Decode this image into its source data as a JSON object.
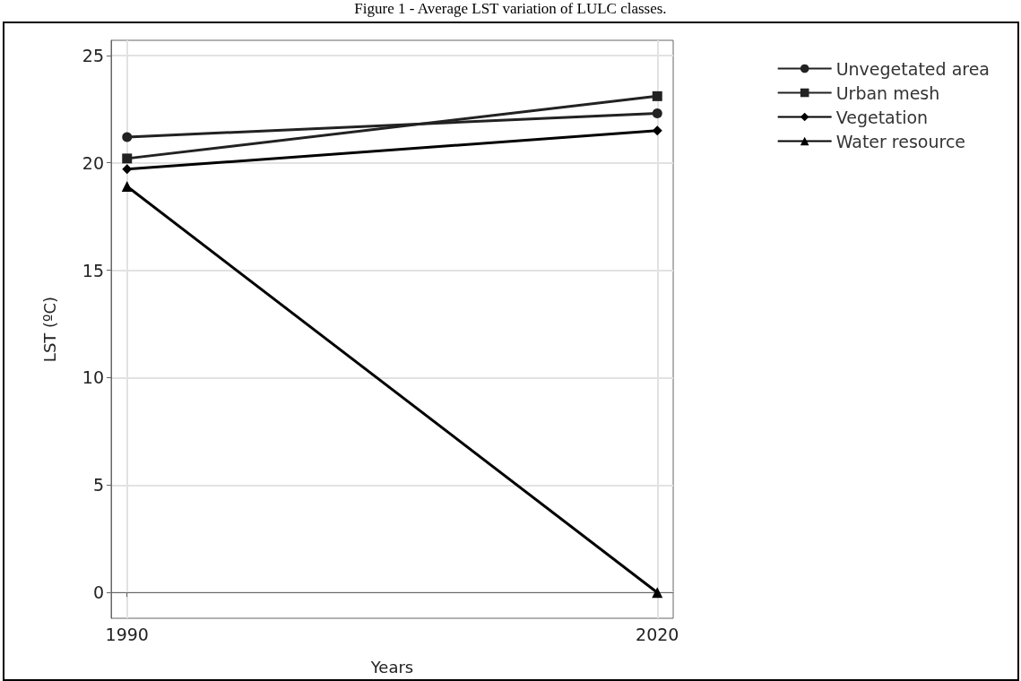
{
  "chart_data": {
    "type": "line",
    "title": "Figure 1 - Average LST variation of LULC classes.",
    "xlabel": "Years",
    "ylabel": "LST (ºC)",
    "x": [
      1990,
      2020
    ],
    "xlim": [
      1989.1,
      2020.9
    ],
    "xticks": [
      1990,
      2020
    ],
    "ylim": [
      -1.2,
      25.7
    ],
    "yticks": [
      0,
      5,
      10,
      15,
      20,
      25
    ],
    "grid": true,
    "legend": "top right",
    "series": [
      {
        "name": "Unvegetated area",
        "color": "#222222",
        "marker": "circle",
        "values": [
          21.2,
          22.3
        ]
      },
      {
        "name": "Urban mesh",
        "color": "#222222",
        "marker": "square",
        "values": [
          20.2,
          23.1
        ]
      },
      {
        "name": "Vegetation",
        "color": "#000000",
        "marker": "diamond",
        "values": [
          19.7,
          21.5
        ]
      },
      {
        "name": "Water resource",
        "color": "#000000",
        "marker": "triangle",
        "values": [
          18.9,
          0
        ]
      }
    ]
  }
}
